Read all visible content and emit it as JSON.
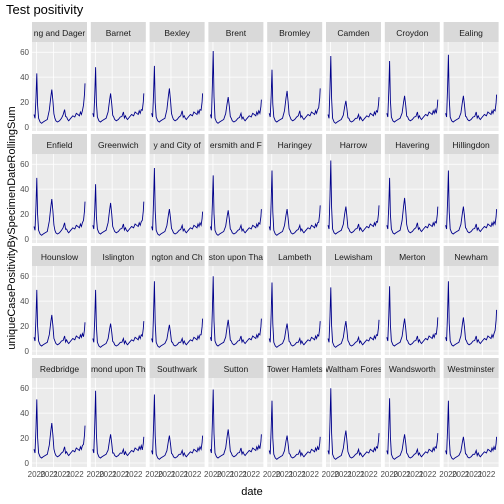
{
  "chart_data": {
    "type": "line",
    "title": "Test positivity",
    "xlabel": "date",
    "ylabel": "uniqueCasePositivityBySpecimenDateRollingSum",
    "ylim": [
      0,
      65
    ],
    "y_ticks": [
      0,
      20,
      40,
      60
    ],
    "x_tick_labels": [
      "2020",
      "2021",
      "2021",
      "2022"
    ],
    "series_color": "#00008B",
    "panel_background": "#EBEBEB",
    "strip_background": "#D9D9D9",
    "grid": true,
    "x_profile": [
      0,
      0.02,
      0.04,
      0.055,
      0.07,
      0.09,
      0.12,
      0.15,
      0.18,
      0.22,
      0.26,
      0.3,
      0.33,
      0.35,
      0.37,
      0.39,
      0.41,
      0.43,
      0.46,
      0.5,
      0.54,
      0.57,
      0.6,
      0.62,
      0.64,
      0.66,
      0.68,
      0.72,
      0.76,
      0.8,
      0.83,
      0.86,
      0.89,
      0.91,
      0.93,
      0.95,
      0.97,
      0.99,
      1.0
    ],
    "panels": [
      {
        "name": "ng and Dager",
        "peak1": 43,
        "peak2": 30,
        "peak3": 14,
        "end": 35,
        "base": 4
      },
      {
        "name": "Barnet",
        "peak1": 48,
        "peak2": 27,
        "peak3": 12,
        "end": 27,
        "base": 5
      },
      {
        "name": "Bexley",
        "peak1": 49,
        "peak2": 31,
        "peak3": 13,
        "end": 27,
        "base": 5
      },
      {
        "name": "Brent",
        "peak1": 61,
        "peak2": 24,
        "peak3": 11,
        "end": 22,
        "base": 4
      },
      {
        "name": "Bromley",
        "peak1": 46,
        "peak2": 29,
        "peak3": 13,
        "end": 31,
        "base": 5
      },
      {
        "name": "Camden",
        "peak1": 57,
        "peak2": 21,
        "peak3": 10,
        "end": 24,
        "base": 4
      },
      {
        "name": "Croydon",
        "peak1": 53,
        "peak2": 25,
        "peak3": 12,
        "end": 22,
        "base": 5
      },
      {
        "name": "Ealing",
        "peak1": 58,
        "peak2": 25,
        "peak3": 12,
        "end": 26,
        "base": 5
      },
      {
        "name": "Enfield",
        "peak1": 49,
        "peak2": 32,
        "peak3": 13,
        "end": 30,
        "base": 4
      },
      {
        "name": "Greenwich",
        "peak1": 44,
        "peak2": 29,
        "peak3": 12,
        "end": 30,
        "base": 5
      },
      {
        "name": "y and City of",
        "peak1": 57,
        "peak2": 24,
        "peak3": 11,
        "end": 22,
        "base": 4
      },
      {
        "name": "ersmith and F",
        "peak1": 51,
        "peak2": 23,
        "peak3": 11,
        "end": 24,
        "base": 4
      },
      {
        "name": "Haringey",
        "peak1": 55,
        "peak2": 24,
        "peak3": 11,
        "end": 27,
        "base": 4
      },
      {
        "name": "Harrow",
        "peak1": 63,
        "peak2": 26,
        "peak3": 12,
        "end": 27,
        "base": 5
      },
      {
        "name": "Havering",
        "peak1": 49,
        "peak2": 33,
        "peak3": 13,
        "end": 26,
        "base": 5
      },
      {
        "name": "Hillingdon",
        "peak1": 55,
        "peak2": 26,
        "peak3": 12,
        "end": 24,
        "base": 5
      },
      {
        "name": "Hounslow",
        "peak1": 49,
        "peak2": 29,
        "peak3": 12,
        "end": 23,
        "base": 5
      },
      {
        "name": "Islington",
        "peak1": 49,
        "peak2": 22,
        "peak3": 10,
        "end": 24,
        "base": 4
      },
      {
        "name": "ngton and Ch",
        "peak1": 56,
        "peak2": 21,
        "peak3": 10,
        "end": 26,
        "base": 4
      },
      {
        "name": "ston upon Tha",
        "peak1": 60,
        "peak2": 25,
        "peak3": 12,
        "end": 26,
        "base": 5
      },
      {
        "name": "Lambeth",
        "peak1": 55,
        "peak2": 22,
        "peak3": 10,
        "end": 24,
        "base": 4
      },
      {
        "name": "Lewisham",
        "peak1": 51,
        "peak2": 24,
        "peak3": 11,
        "end": 25,
        "base": 4
      },
      {
        "name": "Merton",
        "peak1": 52,
        "peak2": 26,
        "peak3": 12,
        "end": 27,
        "base": 5
      },
      {
        "name": "Newham",
        "peak1": 56,
        "peak2": 27,
        "peak3": 12,
        "end": 33,
        "base": 5
      },
      {
        "name": "Redbridge",
        "peak1": 51,
        "peak2": 32,
        "peak3": 13,
        "end": 30,
        "base": 5
      },
      {
        "name": "mond upon Th",
        "peak1": 58,
        "peak2": 23,
        "peak3": 11,
        "end": 21,
        "base": 5
      },
      {
        "name": "Southwark",
        "peak1": 55,
        "peak2": 22,
        "peak3": 10,
        "end": 22,
        "base": 4
      },
      {
        "name": "Sutton",
        "peak1": 59,
        "peak2": 27,
        "peak3": 12,
        "end": 23,
        "base": 5
      },
      {
        "name": "Tower Hamlets",
        "peak1": 50,
        "peak2": 22,
        "peak3": 10,
        "end": 21,
        "base": 4
      },
      {
        "name": "Waltham Fores",
        "peak1": 60,
        "peak2": 26,
        "peak3": 11,
        "end": 24,
        "base": 4
      },
      {
        "name": "Wandsworth",
        "peak1": 52,
        "peak2": 23,
        "peak3": 11,
        "end": 24,
        "base": 4
      },
      {
        "name": "Westminster",
        "peak1": 50,
        "peak2": 21,
        "peak3": 10,
        "end": 21,
        "base": 4
      }
    ]
  }
}
